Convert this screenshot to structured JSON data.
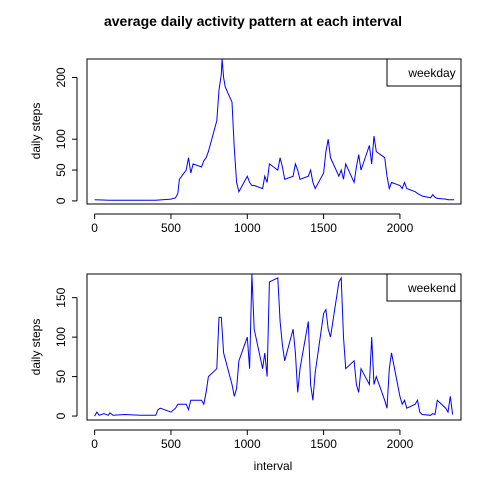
{
  "chart_data": {
    "type": "line",
    "title": "average daily activity pattern at each interval",
    "xlabel": "interval",
    "ylabel": "daily steps",
    "line_color": "#0000ff",
    "panels": [
      {
        "legend": "weekday",
        "legend_position": "top-right",
        "xlim": [
          -50,
          2400
        ],
        "ylim": [
          -5,
          230
        ],
        "xticks": [
          0,
          500,
          1000,
          1500,
          2000
        ],
        "yticks": [
          0,
          50,
          100,
          200
        ],
        "series": [
          {
            "name": "weekday",
            "x": [
              0,
              100,
              200,
              300,
              400,
              500,
              530,
              545,
              555,
              600,
              615,
              630,
              645,
              700,
              715,
              730,
              745,
              800,
              815,
              830,
              835,
              845,
              855,
              900,
              915,
              930,
              945,
              1000,
              1015,
              1030,
              1045,
              1100,
              1115,
              1130,
              1145,
              1200,
              1215,
              1230,
              1245,
              1300,
              1315,
              1330,
              1345,
              1400,
              1415,
              1430,
              1445,
              1500,
              1515,
              1530,
              1545,
              1600,
              1615,
              1630,
              1645,
              1700,
              1715,
              1730,
              1745,
              1800,
              1815,
              1830,
              1845,
              1900,
              1915,
              1930,
              1945,
              2000,
              2015,
              2030,
              2045,
              2100,
              2115,
              2130,
              2145,
              2200,
              2215,
              2230,
              2245,
              2300,
              2315,
              2330,
              2355
            ],
            "y": [
              2,
              1,
              1,
              1,
              1,
              3,
              5,
              12,
              35,
              50,
              70,
              45,
              60,
              55,
              65,
              70,
              80,
              130,
              180,
              205,
              230,
              200,
              185,
              160,
              85,
              30,
              15,
              40,
              30,
              25,
              25,
              20,
              40,
              30,
              60,
              50,
              70,
              55,
              35,
              40,
              60,
              50,
              35,
              40,
              50,
              30,
              20,
              45,
              80,
              100,
              70,
              40,
              50,
              35,
              60,
              30,
              55,
              75,
              50,
              90,
              60,
              105,
              80,
              70,
              40,
              20,
              30,
              25,
              20,
              30,
              20,
              15,
              12,
              10,
              8,
              5,
              10,
              6,
              4,
              3,
              2,
              2,
              2
            ]
          }
        ]
      },
      {
        "legend": "weekend",
        "legend_position": "top-right",
        "xlim": [
          -50,
          2400
        ],
        "ylim": [
          -5,
          180
        ],
        "xticks": [
          0,
          500,
          1000,
          1500,
          2000
        ],
        "yticks": [
          0,
          50,
          100,
          150
        ],
        "series": [
          {
            "name": "weekend",
            "x": [
              0,
              15,
              30,
              60,
              90,
              100,
              120,
              200,
              300,
              400,
              415,
              430,
              500,
              530,
              545,
              600,
              615,
              630,
              700,
              715,
              730,
              745,
              800,
              815,
              830,
              845,
              900,
              915,
              930,
              945,
              1000,
              1015,
              1030,
              1045,
              1100,
              1115,
              1130,
              1145,
              1200,
              1215,
              1230,
              1245,
              1300,
              1315,
              1330,
              1345,
              1400,
              1415,
              1430,
              1445,
              1500,
              1515,
              1530,
              1545,
              1600,
              1615,
              1630,
              1645,
              1700,
              1715,
              1730,
              1745,
              1800,
              1815,
              1830,
              1845,
              1900,
              1915,
              1930,
              1945,
              2000,
              2015,
              2030,
              2045,
              2100,
              2115,
              2130,
              2145,
              2200,
              2215,
              2230,
              2245,
              2300,
              2315,
              2330,
              2345
            ],
            "y": [
              0,
              5,
              1,
              3,
              1,
              4,
              1,
              2,
              1,
              1,
              8,
              10,
              5,
              10,
              15,
              15,
              8,
              20,
              20,
              15,
              30,
              50,
              60,
              125,
              125,
              80,
              40,
              25,
              35,
              70,
              100,
              60,
              180,
              110,
              60,
              80,
              50,
              170,
              175,
              120,
              90,
              70,
              110,
              80,
              30,
              60,
              120,
              40,
              20,
              55,
              130,
              135,
              110,
              100,
              170,
              175,
              100,
              60,
              70,
              40,
              30,
              60,
              40,
              100,
              40,
              50,
              20,
              10,
              60,
              80,
              25,
              15,
              20,
              10,
              15,
              20,
              5,
              2,
              1,
              3,
              2,
              20,
              10,
              5,
              25,
              2
            ]
          }
        ]
      }
    ]
  }
}
